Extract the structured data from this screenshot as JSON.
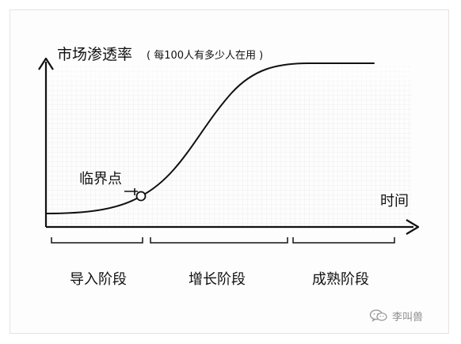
{
  "diagram": {
    "y_axis": {
      "title": "市场渗透率",
      "note": "( 每100人有多少人在用 )"
    },
    "x_axis": {
      "title": "时间"
    },
    "critical_point": {
      "label": "临界点"
    },
    "stages": [
      {
        "label": "导入阶段"
      },
      {
        "label": "增长阶段"
      },
      {
        "label": "成熟阶段"
      }
    ]
  },
  "watermark": {
    "text": "李叫兽",
    "icon": "wechat-icon"
  },
  "colors": {
    "ink": "#111111",
    "grid": "#d9d9d9",
    "watermark": "#8f8f8f"
  }
}
